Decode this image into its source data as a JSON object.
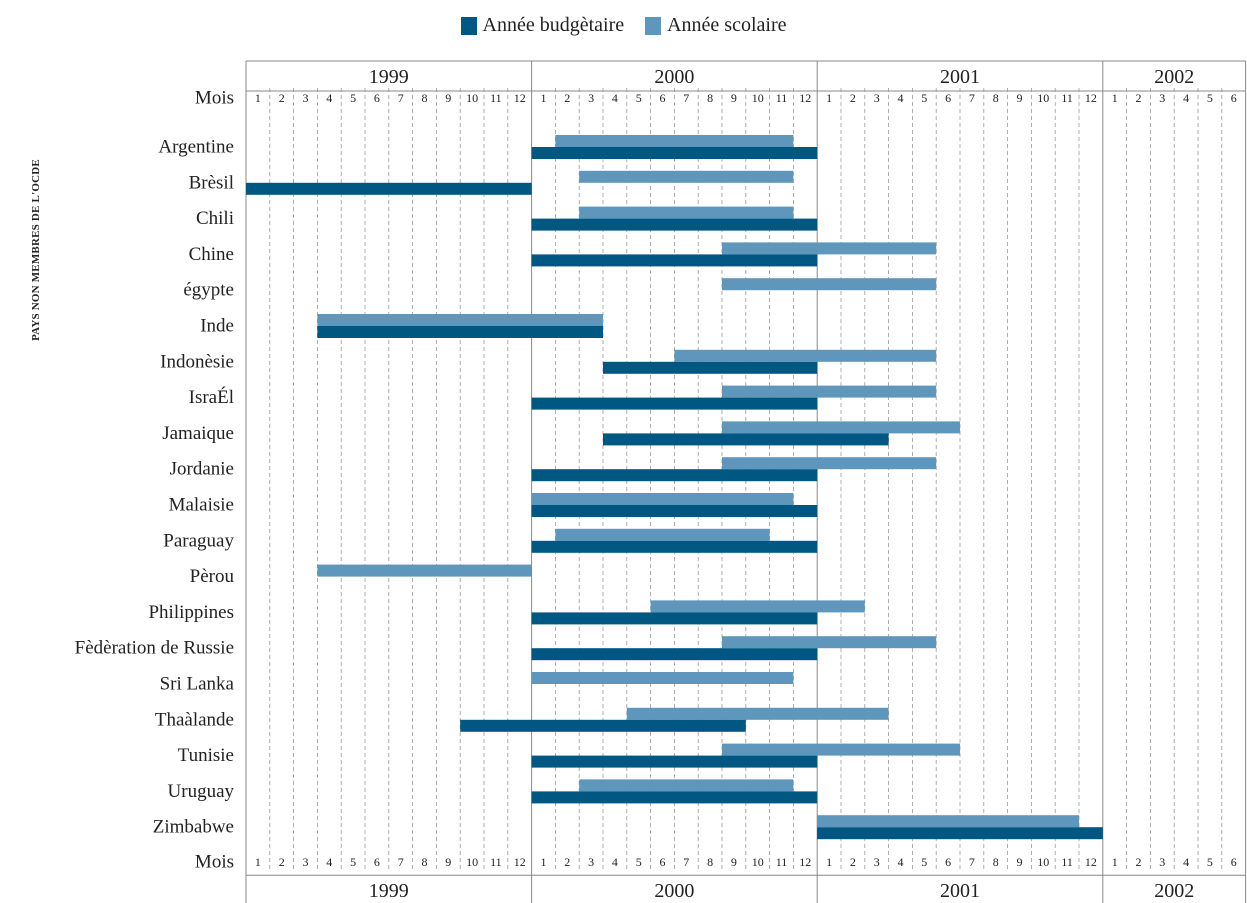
{
  "legend": {
    "budget_label": "Année budgètaire",
    "school_label": "Année scolaire"
  },
  "side_label": "PAYS NON MEMBRES DE L'OCDE",
  "colors": {
    "budget": "#005782",
    "school": "#5e97bb",
    "grid": "#999999",
    "frame": "#888888"
  },
  "chart_data": {
    "type": "gantt",
    "title": "",
    "row_header": "Mois",
    "years": [
      "1999",
      "2000",
      "2001",
      "2002"
    ],
    "months_per_year": [
      12,
      12,
      12,
      6
    ],
    "month_labels": [
      "1",
      "2",
      "3",
      "4",
      "5",
      "6",
      "7",
      "8",
      "9",
      "10",
      "11",
      "12",
      "1",
      "2",
      "3",
      "4",
      "5",
      "6",
      "7",
      "8",
      "9",
      "10",
      "11",
      "12",
      "1",
      "2",
      "3",
      "4",
      "5",
      "6",
      "7",
      "8",
      "9",
      "10",
      "11",
      "12",
      "1",
      "2",
      "3",
      "4",
      "5",
      "6"
    ],
    "series": [
      {
        "name": "Année budgètaire",
        "key": "budget"
      },
      {
        "name": "Année scolaire",
        "key": "school"
      }
    ],
    "countries": [
      {
        "name": "Argentine",
        "school": [
          "2000-02",
          "2000-11"
        ],
        "budget": [
          "2000-01",
          "2000-12"
        ]
      },
      {
        "name": "Brèsil",
        "school": [
          "2000-03",
          "2000-11"
        ],
        "budget": [
          "1999-01",
          "1999-12"
        ]
      },
      {
        "name": "Chili",
        "school": [
          "2000-03",
          "2000-11"
        ],
        "budget": [
          "2000-01",
          "2000-12"
        ]
      },
      {
        "name": "Chine",
        "school": [
          "2000-09",
          "2001-05"
        ],
        "budget": [
          "2000-01",
          "2000-12"
        ]
      },
      {
        "name": "égypte",
        "school": [
          "2000-09",
          "2001-05"
        ],
        "budget": null
      },
      {
        "name": "Inde",
        "school": [
          "1999-04",
          "2000-03"
        ],
        "budget": [
          "1999-04",
          "2000-03"
        ]
      },
      {
        "name": "Indonèsie",
        "school": [
          "2000-07",
          "2001-05"
        ],
        "budget": [
          "2000-04",
          "2000-12"
        ]
      },
      {
        "name": "IsraÉl",
        "school": [
          "2000-09",
          "2001-05"
        ],
        "budget": [
          "2000-01",
          "2000-12"
        ]
      },
      {
        "name": "Jamaique",
        "school": [
          "2000-09",
          "2001-06"
        ],
        "budget": [
          "2000-04",
          "2001-03"
        ]
      },
      {
        "name": "Jordanie",
        "school": [
          "2000-09",
          "2001-05"
        ],
        "budget": [
          "2000-01",
          "2000-12"
        ]
      },
      {
        "name": "Malaisie",
        "school": [
          "2000-01",
          "2000-11"
        ],
        "budget": [
          "2000-01",
          "2000-12"
        ]
      },
      {
        "name": "Paraguay",
        "school": [
          "2000-02",
          "2000-10"
        ],
        "budget": [
          "2000-01",
          "2000-12"
        ]
      },
      {
        "name": "Pèrou",
        "school": [
          "1999-04",
          "1999-12"
        ],
        "budget": null
      },
      {
        "name": "Philippines",
        "school": [
          "2000-06",
          "2001-02"
        ],
        "budget": [
          "2000-01",
          "2000-12"
        ]
      },
      {
        "name": "Fèdèration de Russie",
        "school": [
          "2000-09",
          "2001-05"
        ],
        "budget": [
          "2000-01",
          "2000-12"
        ]
      },
      {
        "name": "Sri Lanka",
        "school": [
          "2000-01",
          "2000-11"
        ],
        "budget": null
      },
      {
        "name": "Thaàlande",
        "school": [
          "2000-05",
          "2001-03"
        ],
        "budget": [
          "1999-10",
          "2000-09"
        ]
      },
      {
        "name": "Tunisie",
        "school": [
          "2000-09",
          "2001-06"
        ],
        "budget": [
          "2000-01",
          "2000-12"
        ]
      },
      {
        "name": "Uruguay",
        "school": [
          "2000-03",
          "2000-11"
        ],
        "budget": [
          "2000-01",
          "2000-12"
        ]
      },
      {
        "name": "Zimbabwe",
        "school": [
          "2001-01",
          "2001-11"
        ],
        "budget": [
          "2001-01",
          "2001-12"
        ]
      }
    ]
  }
}
